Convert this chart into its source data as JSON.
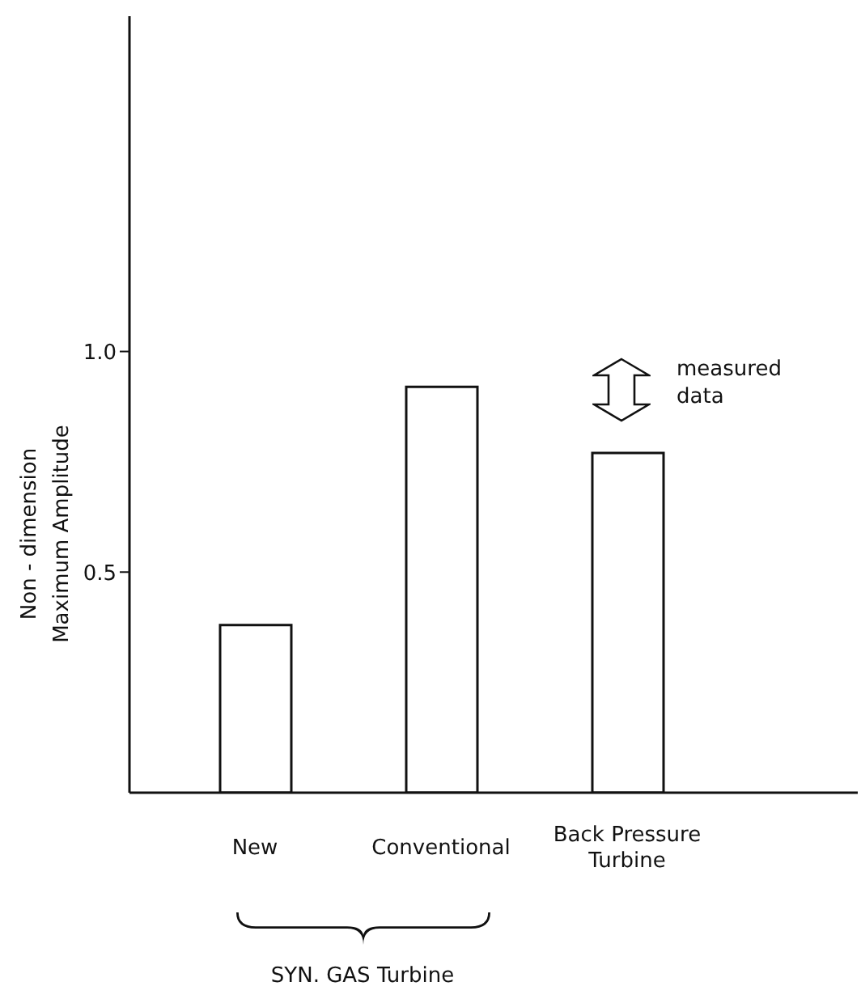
{
  "chart_data": {
    "type": "bar",
    "ylabel": "Non - dimension\nMaximum Amplitude",
    "categories": [
      "New",
      "Conventional",
      "Back Pressure Turbine"
    ],
    "values": [
      0.38,
      0.92,
      0.77
    ],
    "color": "#ffffff",
    "ylim": [
      0,
      1.76
    ],
    "yticks": [
      {
        "value": 0.5,
        "label": "0.5"
      },
      {
        "value": 1,
        "label": "1.0"
      }
    ],
    "grid": false,
    "annotations": [
      "measured data",
      "SYN. GAS Turbine"
    ]
  }
}
